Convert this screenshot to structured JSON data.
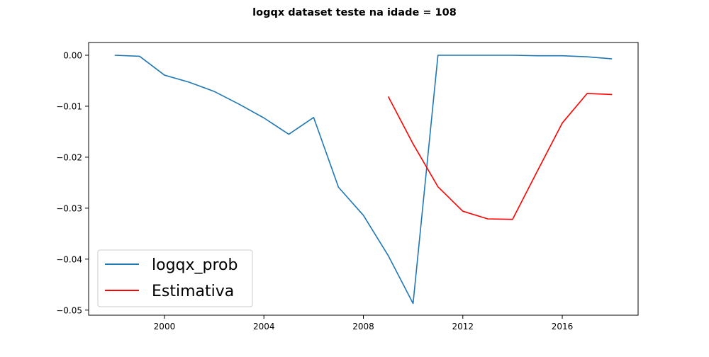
{
  "chart_data": {
    "type": "line",
    "title": "logqx dataset teste na idade = 108",
    "xlabel": "",
    "ylabel": "",
    "xlim": [
      1996.95,
      2019.05
    ],
    "ylim": [
      -0.051,
      0.0025
    ],
    "x_ticks": [
      2000,
      2004,
      2008,
      2012,
      2016
    ],
    "x_tick_labels": [
      "2000",
      "2004",
      "2008",
      "2012",
      "2016"
    ],
    "y_ticks": [
      0.0,
      -0.01,
      -0.02,
      -0.03,
      -0.04,
      -0.05
    ],
    "y_tick_labels": [
      "0.00",
      "−0.01",
      "−0.02",
      "−0.03",
      "−0.04",
      "−0.05"
    ],
    "grid": false,
    "legend_position": "lower-left",
    "series": [
      {
        "name": "logqx_prob",
        "color": "#1f77b4",
        "x": [
          1998,
          1999,
          2000,
          2001,
          2002,
          2003,
          2004,
          2005,
          2006,
          2007,
          2008,
          2009,
          2010,
          2011,
          2012,
          2013,
          2014,
          2015,
          2016,
          2017,
          2018
        ],
        "y": [
          0.0,
          -0.0002,
          -0.0039,
          -0.0053,
          -0.0071,
          -0.0096,
          -0.0123,
          -0.0155,
          -0.0122,
          -0.0259,
          -0.0314,
          -0.0393,
          -0.0487,
          0.0,
          0.0,
          0.0,
          0.0,
          -0.0001,
          -0.0001,
          -0.0003,
          -0.0007
        ]
      },
      {
        "name": "Estimativa",
        "color": "#ff0000",
        "x": [
          2009,
          2010,
          2011,
          2012,
          2013,
          2014,
          2015,
          2016,
          2017,
          2018
        ],
        "y": [
          -0.0081,
          -0.0174,
          -0.0258,
          -0.0306,
          -0.0321,
          -0.0322,
          -0.0227,
          -0.0133,
          -0.0075,
          -0.0077
        ]
      }
    ]
  }
}
